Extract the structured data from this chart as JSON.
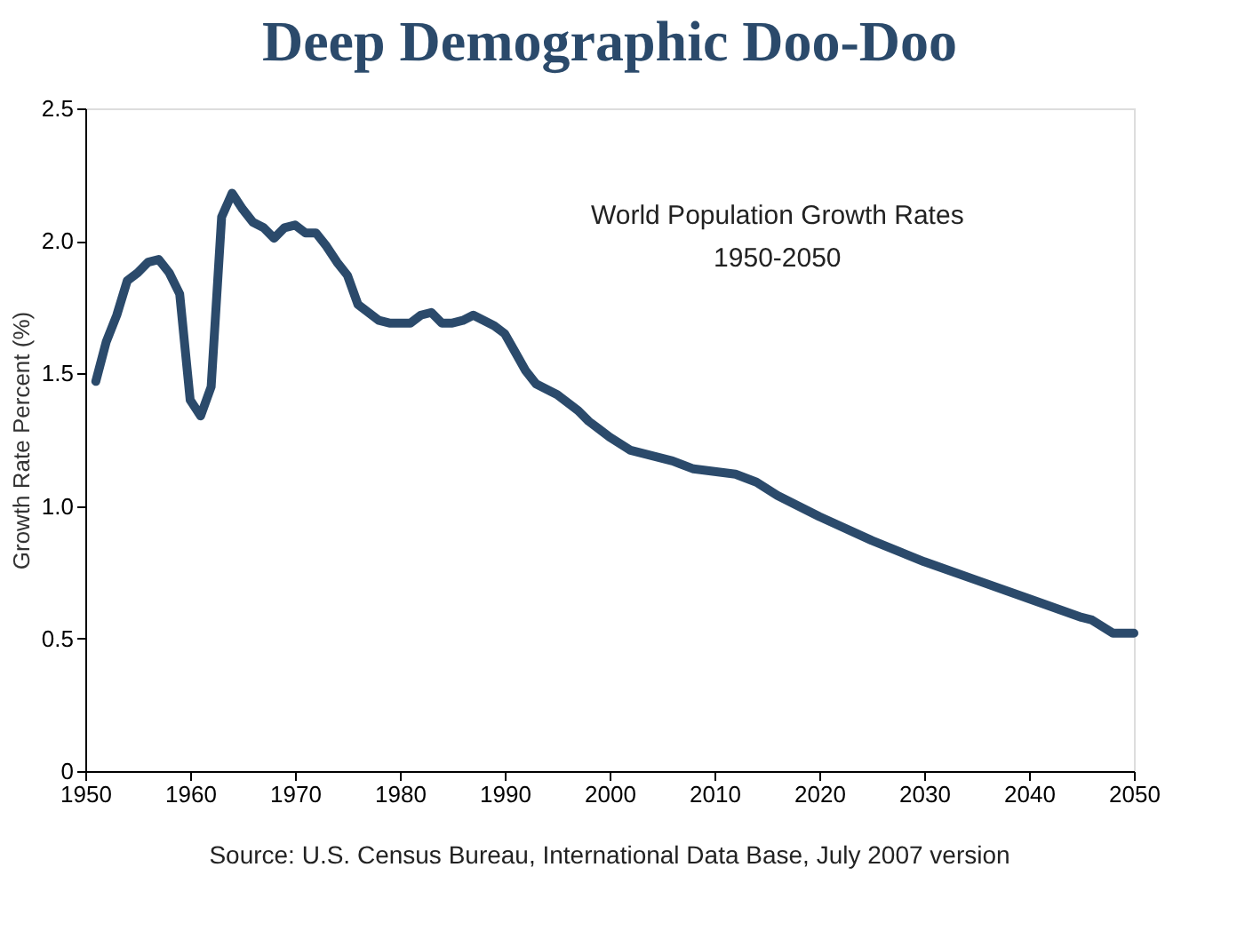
{
  "chart_data": {
    "type": "line",
    "title": "Deep Demographic Doo-Doo",
    "ylabel": "Growth Rate Percent (%)",
    "annotations": [
      "World Population Growth Rates",
      "1950-2050",
      "Source: U.S. Census Bureau, International Data Base, July 2007 version"
    ],
    "x": [
      1951,
      1952,
      1953,
      1954,
      1955,
      1956,
      1957,
      1958,
      1959,
      1960,
      1961,
      1962,
      1963,
      1964,
      1965,
      1966,
      1967,
      1968,
      1969,
      1970,
      1971,
      1972,
      1973,
      1974,
      1975,
      1976,
      1977,
      1978,
      1979,
      1980,
      1981,
      1982,
      1983,
      1984,
      1985,
      1986,
      1987,
      1988,
      1989,
      1990,
      1991,
      1992,
      1993,
      1994,
      1995,
      1996,
      1997,
      1998,
      1999,
      2000,
      2002,
      2004,
      2006,
      2008,
      2010,
      2012,
      2014,
      2016,
      2020,
      2025,
      2030,
      2035,
      2040,
      2045,
      2046,
      2048,
      2050
    ],
    "series": [
      {
        "color": "#2b4a6b",
        "values": [
          1.47,
          1.62,
          1.72,
          1.85,
          1.88,
          1.92,
          1.93,
          1.88,
          1.8,
          1.4,
          1.34,
          1.45,
          2.09,
          2.18,
          2.12,
          2.07,
          2.05,
          2.01,
          2.05,
          2.06,
          2.03,
          2.03,
          1.98,
          1.92,
          1.87,
          1.76,
          1.73,
          1.7,
          1.69,
          1.69,
          1.69,
          1.72,
          1.73,
          1.69,
          1.69,
          1.7,
          1.72,
          1.7,
          1.68,
          1.65,
          1.58,
          1.51,
          1.46,
          1.44,
          1.42,
          1.39,
          1.36,
          1.32,
          1.29,
          1.26,
          1.21,
          1.19,
          1.17,
          1.14,
          1.13,
          1.12,
          1.09,
          1.04,
          0.96,
          0.87,
          0.79,
          0.72,
          0.65,
          0.58,
          0.57,
          0.52,
          0.52
        ]
      }
    ],
    "xlim": [
      1950,
      2050
    ],
    "xticks": [
      1950,
      1960,
      1970,
      1980,
      1990,
      2000,
      2010,
      2020,
      2030,
      2040,
      2050
    ],
    "ylim": [
      0,
      2.5
    ],
    "yticks": [
      {
        "value": 0,
        "label": "0"
      },
      {
        "value": 0.5,
        "label": "0.5"
      },
      {
        "value": 1.0,
        "label": "1.0"
      },
      {
        "value": 1.5,
        "label": "1.5"
      },
      {
        "value": 2.0,
        "label": "2.0"
      },
      {
        "value": 2.5,
        "label": "2.5"
      }
    ],
    "grid": false,
    "marker": "none",
    "line_style": "solid"
  }
}
